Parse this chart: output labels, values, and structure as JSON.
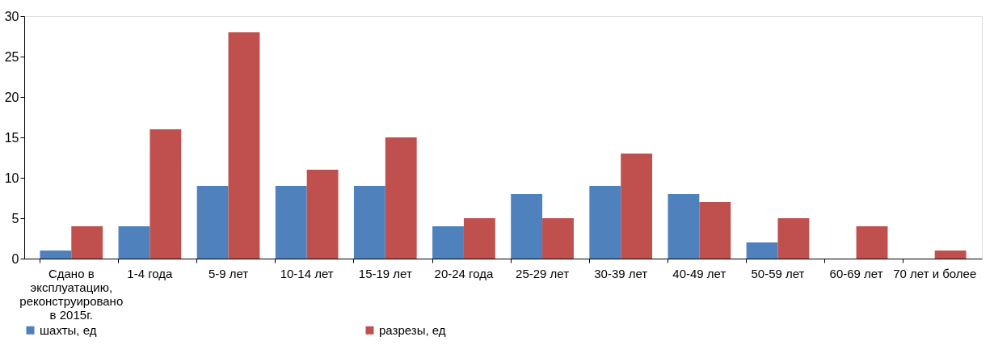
{
  "chart_data": {
    "type": "bar",
    "categories": [
      "Сдано в эксплуатацию, реконструировано в 2015г.",
      "1-4 года",
      "5-9 лет",
      "10-14 лет",
      "15-19 лет",
      "20-24 года",
      "25-29 лет",
      "30-39 лет",
      "40-49 лет",
      "50-59 лет",
      "60-69 лет",
      "70 лет и более"
    ],
    "series": [
      {
        "name": "шахты, ед",
        "color": "#4f81bd",
        "values": [
          1,
          4,
          9,
          9,
          9,
          4,
          8,
          9,
          8,
          2,
          0,
          0
        ]
      },
      {
        "name": "разрезы, ед",
        "color": "#c0504d",
        "values": [
          4,
          16,
          28,
          11,
          15,
          5,
          5,
          13,
          7,
          5,
          4,
          1
        ]
      }
    ],
    "ylim": [
      0,
      30
    ],
    "yticks": [
      0,
      5,
      10,
      15,
      20,
      25,
      30
    ],
    "grid": false,
    "legend": "bottom"
  }
}
